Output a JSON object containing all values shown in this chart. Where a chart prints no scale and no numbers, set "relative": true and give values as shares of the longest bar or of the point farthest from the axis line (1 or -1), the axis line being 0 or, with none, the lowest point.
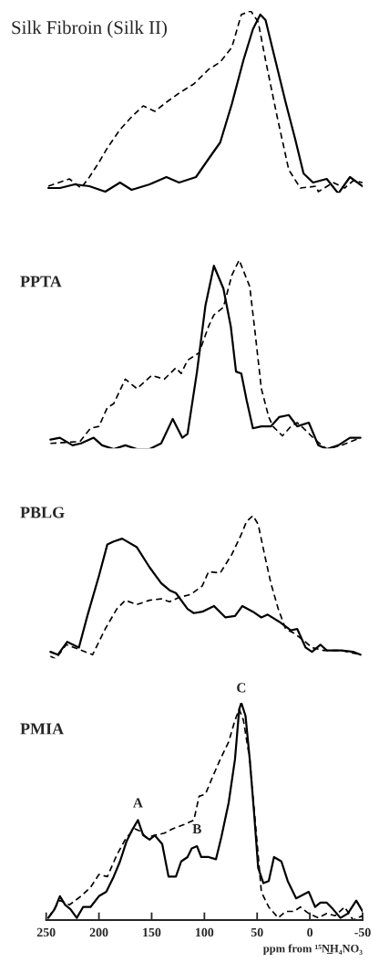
{
  "chart_data": [
    {
      "type": "line",
      "title": "Silk Fibroin (Silk II)",
      "relative": true,
      "xlim": [
        250,
        -50
      ],
      "tick_labels": false,
      "series": [
        {
          "color": "#000000",
          "line_style": "solid",
          "x": [
            248,
            237,
            223,
            209,
            194,
            180,
            169,
            152,
            136,
            124,
            108,
            96,
            85,
            74,
            63,
            54,
            47,
            42,
            34,
            23,
            14,
            6,
            -3,
            -16,
            -27,
            -38,
            -50
          ],
          "values": [
            0.03,
            0.03,
            0.05,
            0.04,
            0.01,
            0.06,
            0.02,
            0.05,
            0.09,
            0.06,
            0.09,
            0.19,
            0.28,
            0.49,
            0.73,
            0.9,
            0.98,
            0.95,
            0.76,
            0.5,
            0.3,
            0.11,
            0.06,
            0.08,
            0,
            0.09,
            0.04
          ]
        },
        {
          "color": "#000000",
          "line_style": "dashed",
          "x": [
            248,
            228,
            217,
            209,
            200,
            192,
            180,
            169,
            158,
            147,
            136,
            124,
            110,
            96,
            85,
            74,
            65,
            56,
            49,
            42,
            31,
            20,
            9,
            -6,
            -8,
            -22,
            -33,
            -41,
            -50
          ],
          "values": [
            0.04,
            0.08,
            0.03,
            0.09,
            0.17,
            0.25,
            0.35,
            0.42,
            0.48,
            0.45,
            0.5,
            0.55,
            0.6,
            0.68,
            0.72,
            0.8,
            0.98,
            1.0,
            0.94,
            0.73,
            0.42,
            0.13,
            0.03,
            0.04,
            0.01,
            0.06,
            0.03,
            0.07,
            0.06
          ]
        }
      ]
    },
    {
      "type": "line",
      "title": "PPTA",
      "relative": true,
      "xlim": [
        250,
        -50
      ],
      "tick_labels": false,
      "series": [
        {
          "color": "#000000",
          "line_style": "solid",
          "x": [
            246,
            237,
            225,
            217,
            205,
            197,
            186,
            175,
            164,
            152,
            141,
            130,
            121,
            116,
            107,
            99,
            91,
            82,
            75,
            70,
            65,
            60,
            54,
            46,
            37,
            29,
            20,
            12,
            1,
            -8,
            -16,
            -27,
            -38,
            -48
          ],
          "values": [
            0.05,
            0.06,
            0.02,
            0.03,
            0.06,
            0.02,
            0,
            0.02,
            0,
            0,
            0.03,
            0.16,
            0.06,
            0.08,
            0.41,
            0.76,
            0.97,
            0.85,
            0.65,
            0.41,
            0.4,
            0.26,
            0.11,
            0.12,
            0.12,
            0.17,
            0.18,
            0.12,
            0.14,
            0.02,
            0,
            0.02,
            0.06,
            0.06
          ]
        },
        {
          "color": "#000000",
          "line_style": "dashed",
          "x": [
            246,
            218,
            208,
            200,
            192,
            186,
            175,
            164,
            150,
            138,
            127,
            122,
            116,
            105,
            96,
            91,
            82,
            74,
            67,
            57,
            52,
            46,
            39,
            35,
            26,
            18,
            12,
            6,
            -5,
            -16,
            -30,
            -48
          ],
          "values": [
            0.03,
            0.04,
            0.11,
            0.12,
            0.22,
            0.24,
            0.37,
            0.32,
            0.39,
            0.37,
            0.43,
            0.4,
            0.47,
            0.51,
            0.65,
            0.71,
            0.75,
            0.92,
            1.0,
            0.86,
            0.62,
            0.32,
            0.17,
            0.12,
            0.07,
            0.12,
            0.14,
            0.11,
            0.05,
            0,
            0.02,
            0.06
          ]
        }
      ]
    },
    {
      "type": "line",
      "title": "PBLG",
      "relative": true,
      "xlim": [
        250,
        -50
      ],
      "tick_labels": false,
      "series": [
        {
          "color": "#000000",
          "line_style": "solid",
          "x": [
            246,
            239,
            230,
            219,
            211,
            200,
            192,
            186,
            178,
            164,
            152,
            141,
            133,
            127,
            116,
            110,
            102,
            91,
            80,
            71,
            64,
            54,
            46,
            40,
            29,
            18,
            12,
            4,
            -2,
            -10,
            -16,
            -30,
            -41,
            -48
          ],
          "values": [
            0.05,
            0.03,
            0.12,
            0.08,
            0.3,
            0.58,
            0.8,
            0.82,
            0.84,
            0.78,
            0.64,
            0.53,
            0.48,
            0.46,
            0.35,
            0.32,
            0.33,
            0.37,
            0.29,
            0.3,
            0.37,
            0.33,
            0.29,
            0.31,
            0.26,
            0.2,
            0.21,
            0.08,
            0.05,
            0.1,
            0.06,
            0.06,
            0.05,
            0.03
          ]
        },
        {
          "color": "#000000",
          "line_style": "dashed",
          "x": [
            246,
            241,
            231,
            220,
            206,
            194,
            183,
            175,
            164,
            152,
            141,
            133,
            124,
            113,
            102,
            96,
            85,
            74,
            65,
            60,
            54,
            49,
            43,
            37,
            30,
            23,
            15,
            6,
            -2,
            -13,
            -30,
            -48
          ],
          "values": [
            0.02,
            0,
            0.1,
            0.07,
            0.03,
            0.21,
            0.35,
            0.41,
            0.38,
            0.41,
            0.42,
            0.4,
            0.43,
            0.45,
            0.51,
            0.61,
            0.6,
            0.73,
            0.87,
            0.96,
            1.0,
            0.94,
            0.73,
            0.53,
            0.35,
            0.21,
            0.18,
            0.13,
            0.08,
            0.06,
            0.06,
            0.03
          ]
        }
      ]
    },
    {
      "type": "line",
      "title": "PMIA",
      "relative": true,
      "xlim": [
        250,
        -50
      ],
      "xticks": [
        250,
        200,
        150,
        100,
        50,
        0,
        {
          "value": -50,
          "label": "-50"
        }
      ],
      "tick_labels": "x",
      "xlabel": "ppm from ¹⁵N̲H₄NO₃",
      "annotations": [
        {
          "text": "A",
          "x": 163,
          "y": 0.47
        },
        {
          "text": "B",
          "x": 107,
          "y": 0.35
        },
        {
          "text": "C",
          "x": 65,
          "y": 1.0
        }
      ],
      "series": [
        {
          "color": "#000000",
          "line_style": "solid",
          "x": [
            248,
            242,
            237,
            232,
            227,
            221,
            215,
            208,
            200,
            193,
            186,
            180,
            174,
            169,
            163,
            158,
            152,
            147,
            140,
            134,
            127,
            122,
            116,
            112,
            107,
            103,
            96,
            89,
            84,
            77,
            71,
            67,
            65,
            61,
            57,
            53,
            49,
            44,
            39,
            34,
            27,
            21,
            13,
            1,
            -5,
            -10,
            -16,
            -22,
            -29,
            -36,
            -44,
            -50
          ],
          "values": [
            0.01,
            0.05,
            0.11,
            0.07,
            0.05,
            0.01,
            0.06,
            0.06,
            0.11,
            0.13,
            0.2,
            0.27,
            0.36,
            0.41,
            0.46,
            0.39,
            0.37,
            0.39,
            0.35,
            0.2,
            0.2,
            0.27,
            0.29,
            0.33,
            0.34,
            0.29,
            0.29,
            0.28,
            0.38,
            0.54,
            0.74,
            0.97,
            1.0,
            0.94,
            0.74,
            0.5,
            0.24,
            0.17,
            0.18,
            0.29,
            0.27,
            0.18,
            0.1,
            0.13,
            0.06,
            0.08,
            0.08,
            0.05,
            0.01,
            0.03,
            0.09,
            0.04
          ]
        },
        {
          "color": "#000000",
          "line_style": "dashed",
          "x": [
            248,
            237,
            228,
            217,
            208,
            200,
            192,
            183,
            174,
            166,
            161,
            155,
            147,
            138,
            130,
            119,
            110,
            105,
            99,
            93,
            85,
            77,
            71,
            67,
            63,
            57,
            51,
            46,
            39,
            30,
            23,
            15,
            9,
            1,
            -8,
            -16,
            -24,
            -33,
            -41,
            -50
          ],
          "values": [
            0.01,
            0.09,
            0.07,
            0.11,
            0.15,
            0.21,
            0.2,
            0.3,
            0.38,
            0.42,
            0.41,
            0.38,
            0.39,
            0.4,
            0.42,
            0.44,
            0.46,
            0.57,
            0.58,
            0.65,
            0.74,
            0.82,
            0.92,
            0.97,
            0.92,
            0.74,
            0.41,
            0.13,
            0.06,
            0.01,
            0.04,
            0.04,
            0.06,
            0.03,
            0.01,
            0.03,
            0.02,
            0.06,
            0,
            0.02
          ]
        }
      ]
    }
  ]
}
